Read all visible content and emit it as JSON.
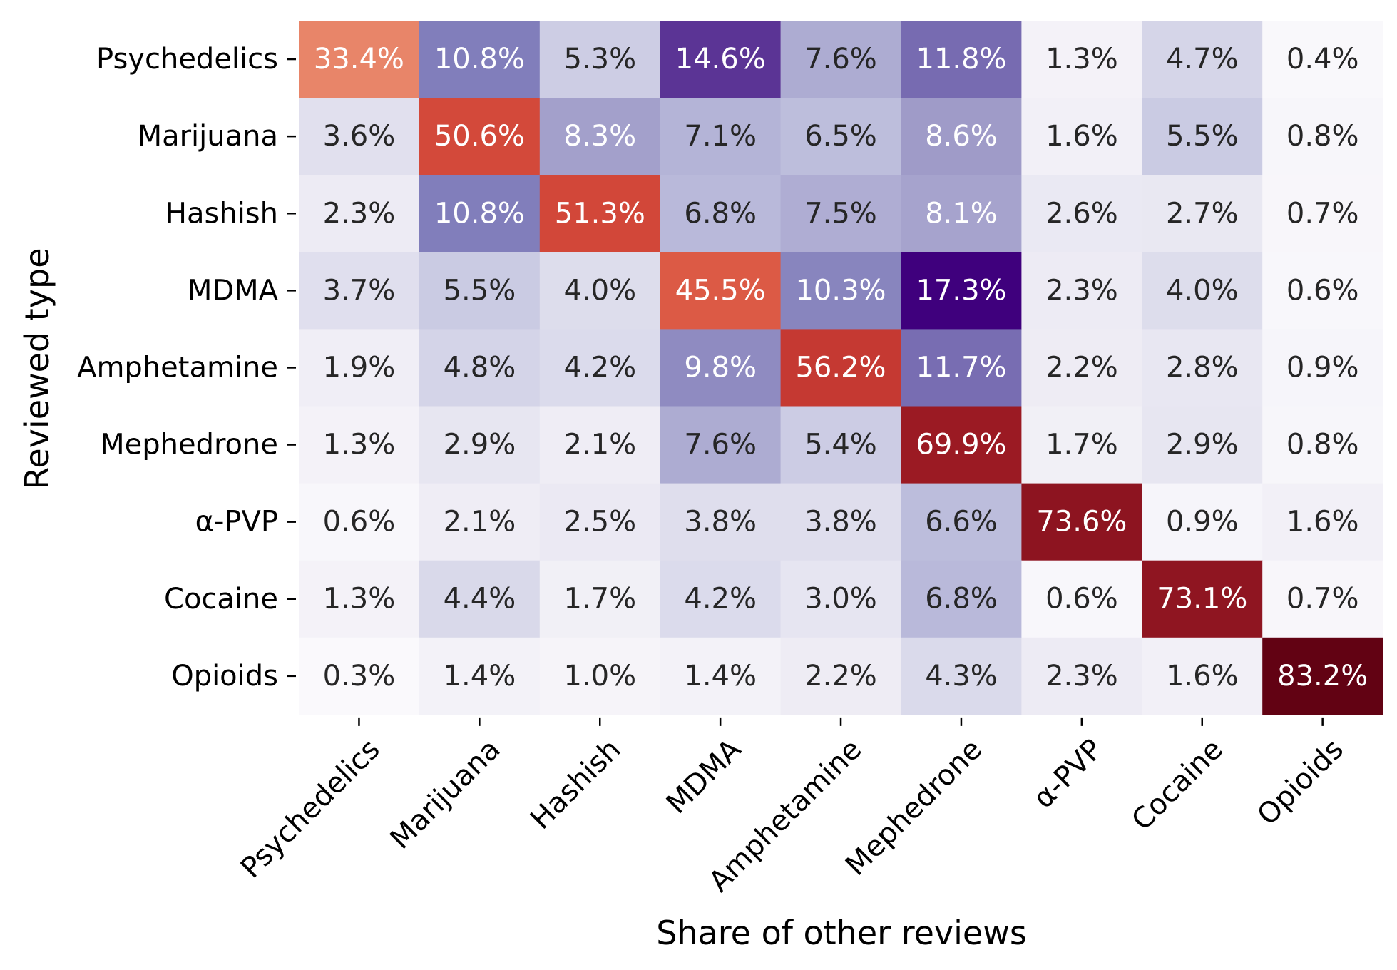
{
  "chart_data": {
    "type": "heatmap",
    "xlabel": "Share of other reviews",
    "ylabel": "Reviewed type",
    "x_categories": [
      "Psychedelics",
      "Marijuana",
      "Hashish",
      "MDMA",
      "Amphetamine",
      "Mephedrone",
      "α-PVP",
      "Cocaine",
      "Opioids"
    ],
    "y_categories": [
      "Psychedelics",
      "Marijuana",
      "Hashish",
      "MDMA",
      "Amphetamine",
      "Mephedrone",
      "α-PVP",
      "Cocaine",
      "Opioids"
    ],
    "value_format": "percent, 1 decimal",
    "colormap": "off-diagonal: white-to-purple (Purples); diagonal: orange-to-dark-red",
    "colors": {
      "off_diagonal_low": "#fcfbfd",
      "off_diagonal_high": "#3f007d",
      "diagonal_low": "#e8866a",
      "diagonal_high": "#5e0012"
    },
    "values": [
      [
        33.4,
        10.8,
        5.3,
        14.6,
        7.6,
        11.8,
        1.3,
        4.7,
        0.4
      ],
      [
        3.6,
        50.6,
        8.3,
        7.1,
        6.5,
        8.6,
        1.6,
        5.5,
        0.8
      ],
      [
        2.3,
        10.8,
        51.3,
        6.8,
        7.5,
        8.1,
        2.6,
        2.7,
        0.7
      ],
      [
        3.7,
        5.5,
        4.0,
        45.5,
        10.3,
        17.3,
        2.3,
        4.0,
        0.6
      ],
      [
        1.9,
        4.8,
        4.2,
        9.8,
        56.2,
        11.7,
        2.2,
        2.8,
        0.9
      ],
      [
        1.3,
        2.9,
        2.1,
        7.6,
        5.4,
        69.9,
        1.7,
        2.9,
        0.8
      ],
      [
        0.6,
        2.1,
        2.5,
        3.8,
        3.8,
        6.6,
        73.6,
        0.9,
        1.6
      ],
      [
        1.3,
        4.4,
        1.7,
        4.2,
        3.0,
        6.8,
        0.6,
        73.1,
        0.7
      ],
      [
        0.3,
        1.4,
        1.0,
        1.4,
        2.2,
        4.3,
        2.3,
        1.6,
        83.2
      ]
    ]
  }
}
